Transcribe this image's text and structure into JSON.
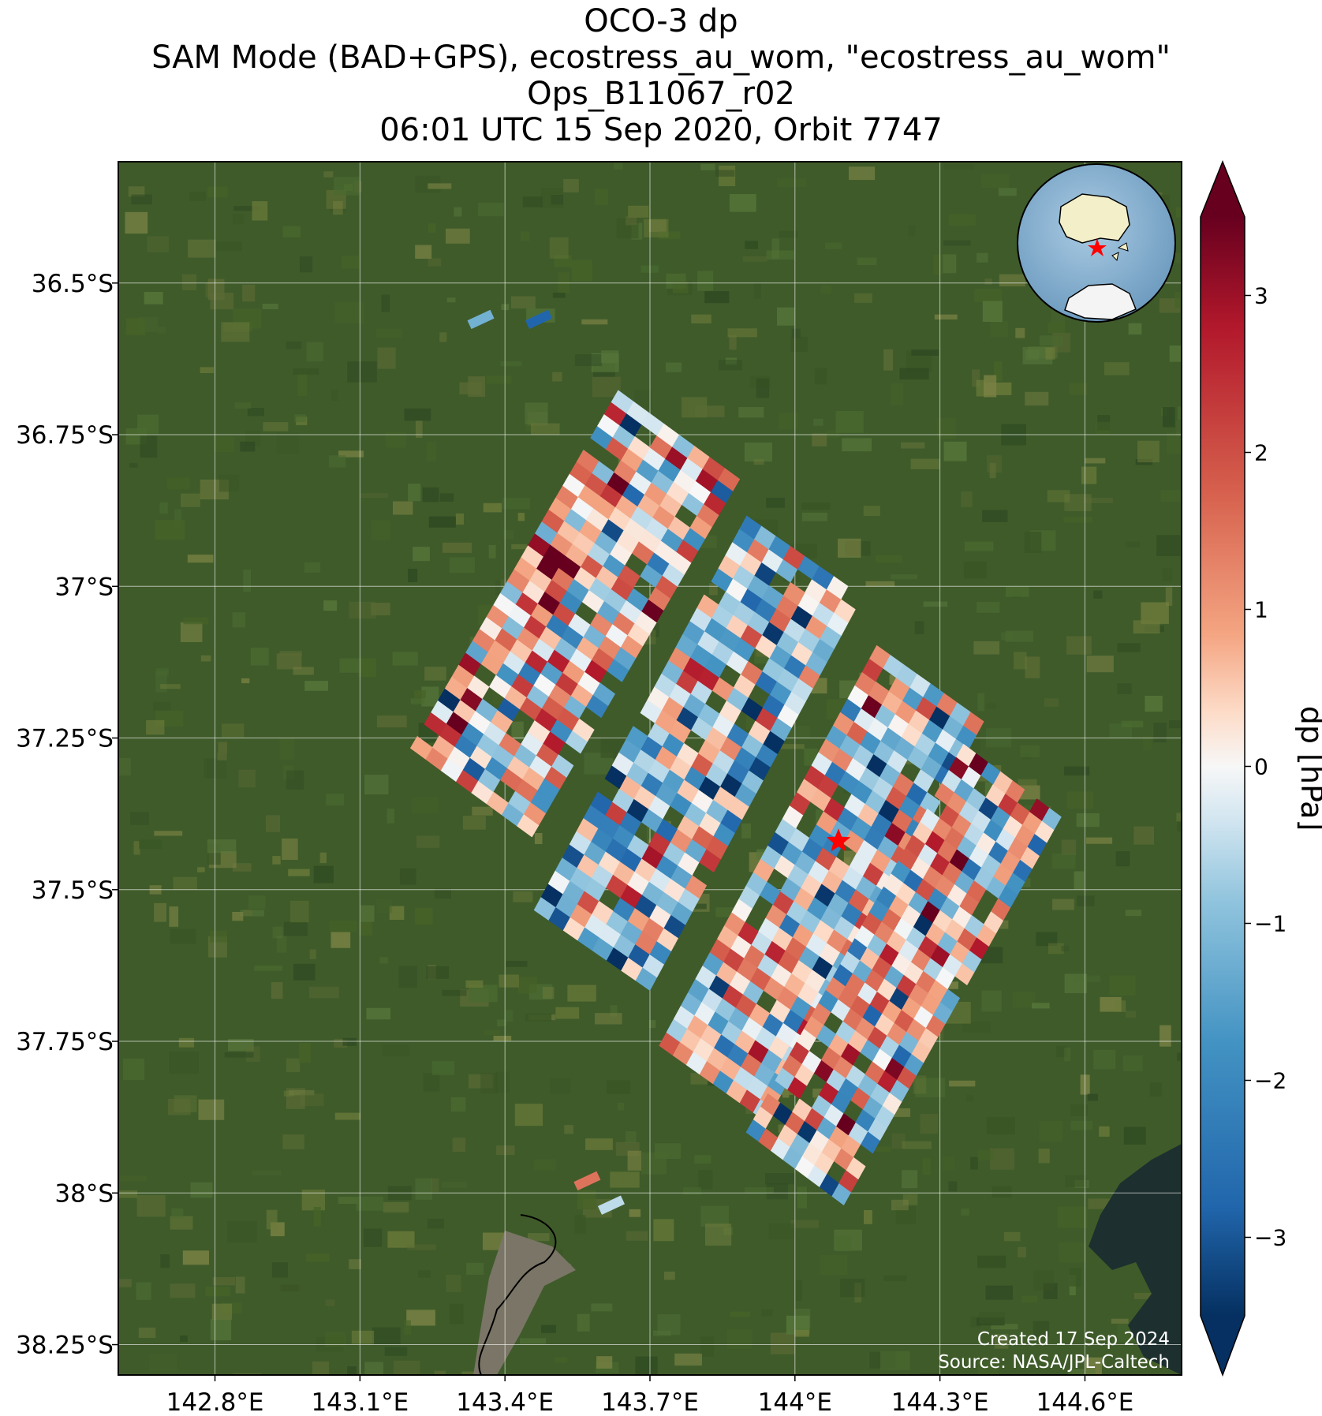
{
  "title": {
    "line1": "OCO-3 dp",
    "line2": "SAM Mode (BAD+GPS), ecostress_au_wom, \"ecostress_au_wom\"",
    "line3": "Ops_B11067_r02",
    "line4": "06:01 UTC 15 Sep 2020, Orbit 7747"
  },
  "map": {
    "lon_range": [
      142.6,
      144.8
    ],
    "lat_range": [
      -38.3,
      -36.3
    ],
    "lon_ticks": [
      {
        "value": 142.8,
        "label": "142.8°E"
      },
      {
        "value": 143.1,
        "label": "143.1°E"
      },
      {
        "value": 143.4,
        "label": "143.4°E"
      },
      {
        "value": 143.7,
        "label": "143.7°E"
      },
      {
        "value": 144.0,
        "label": "144°E"
      },
      {
        "value": 144.3,
        "label": "144.3°E"
      },
      {
        "value": 144.6,
        "label": "144.6°E"
      }
    ],
    "lat_ticks": [
      {
        "value": -36.5,
        "label": "36.5°S"
      },
      {
        "value": -36.75,
        "label": "36.75°S"
      },
      {
        "value": -37.0,
        "label": "37°S"
      },
      {
        "value": -37.25,
        "label": "37.25°S"
      },
      {
        "value": -37.5,
        "label": "37.5°S"
      },
      {
        "value": -37.75,
        "label": "37.75°S"
      },
      {
        "value": -38.0,
        "label": "38°S"
      },
      {
        "value": -38.25,
        "label": "38.25°S"
      }
    ],
    "grid": true,
    "background": "satellite imagery (green farmland)",
    "target_marker": {
      "lon": 144.09,
      "lat": -37.42,
      "color": "#ff0000",
      "icon": "star-icon"
    },
    "inset_globe": {
      "icon": "globe-icon",
      "placement": "top-right",
      "marker_color": "#ff0000"
    },
    "swaths": [
      {
        "lon_start": 143.33,
        "lat_start": -37.34,
        "lon_end": 143.76,
        "lat_end": -36.75,
        "width_deg": 0.31,
        "mean_dp": 0.4
      },
      {
        "lon_start": 143.58,
        "lat_start": -37.6,
        "lon_end": 144.02,
        "lat_end": -36.95,
        "width_deg": 0.29,
        "mean_dp": -0.6
      },
      {
        "lon_start": 143.83,
        "lat_start": -37.82,
        "lon_end": 144.28,
        "lat_end": -37.16,
        "width_deg": 0.27,
        "mean_dp": -0.2
      },
      {
        "lon_start": 144.0,
        "lat_start": -37.96,
        "lon_end": 144.45,
        "lat_end": -37.32,
        "width_deg": 0.25,
        "mean_dp": 0.3
      }
    ],
    "isolated_footprints": [
      {
        "lon": 143.35,
        "lat": -36.56,
        "dp": -1.2
      },
      {
        "lon": 143.47,
        "lat": -36.56,
        "dp": -2.8
      },
      {
        "lon": 143.57,
        "lat": -37.98,
        "dp": 1.5
      },
      {
        "lon": 143.62,
        "lat": -38.02,
        "dp": -0.5
      }
    ]
  },
  "colorbar": {
    "label": "dp [hPa]",
    "vmin": -3.5,
    "vmax": 3.5,
    "cmap": "RdBu_r",
    "ticks": [
      {
        "value": 3,
        "label": "3"
      },
      {
        "value": 2,
        "label": "2"
      },
      {
        "value": 1,
        "label": "1"
      },
      {
        "value": 0,
        "label": "0"
      },
      {
        "value": -1,
        "label": "−1"
      },
      {
        "value": -2,
        "label": "−2"
      },
      {
        "value": -3,
        "label": "−3"
      }
    ]
  },
  "credit": {
    "created": "Created 17 Sep 2024",
    "source": "Source: NASA/JPL-Caltech"
  }
}
